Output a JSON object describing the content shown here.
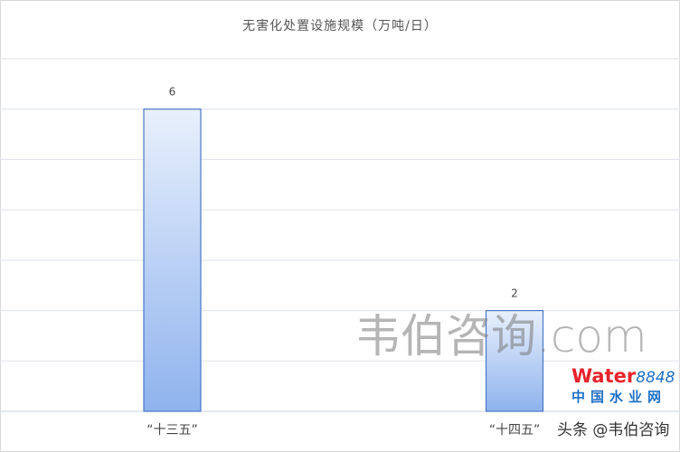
{
  "chart_data": {
    "type": "bar",
    "title": "无害化处置设施规模（万吨/日）",
    "categories": [
      "“十三五”",
      "“十四五”"
    ],
    "values": [
      6,
      2
    ],
    "data_labels": [
      "6",
      "2"
    ],
    "xlabel": "",
    "ylabel": "",
    "ylim": [
      0,
      7
    ],
    "grid": true,
    "y_tick_labels_shown": false,
    "bar_color_top": "#e8f0fc",
    "bar_color_bottom": "#8fb3ee",
    "bar_border": "#4a78c8"
  },
  "watermarks": {
    "main": "韦伯咨询.com",
    "source": "头条 @韦伯咨询",
    "logo_word": "Water",
    "logo_number": "8848",
    "logo_sub": "中国水业网"
  }
}
